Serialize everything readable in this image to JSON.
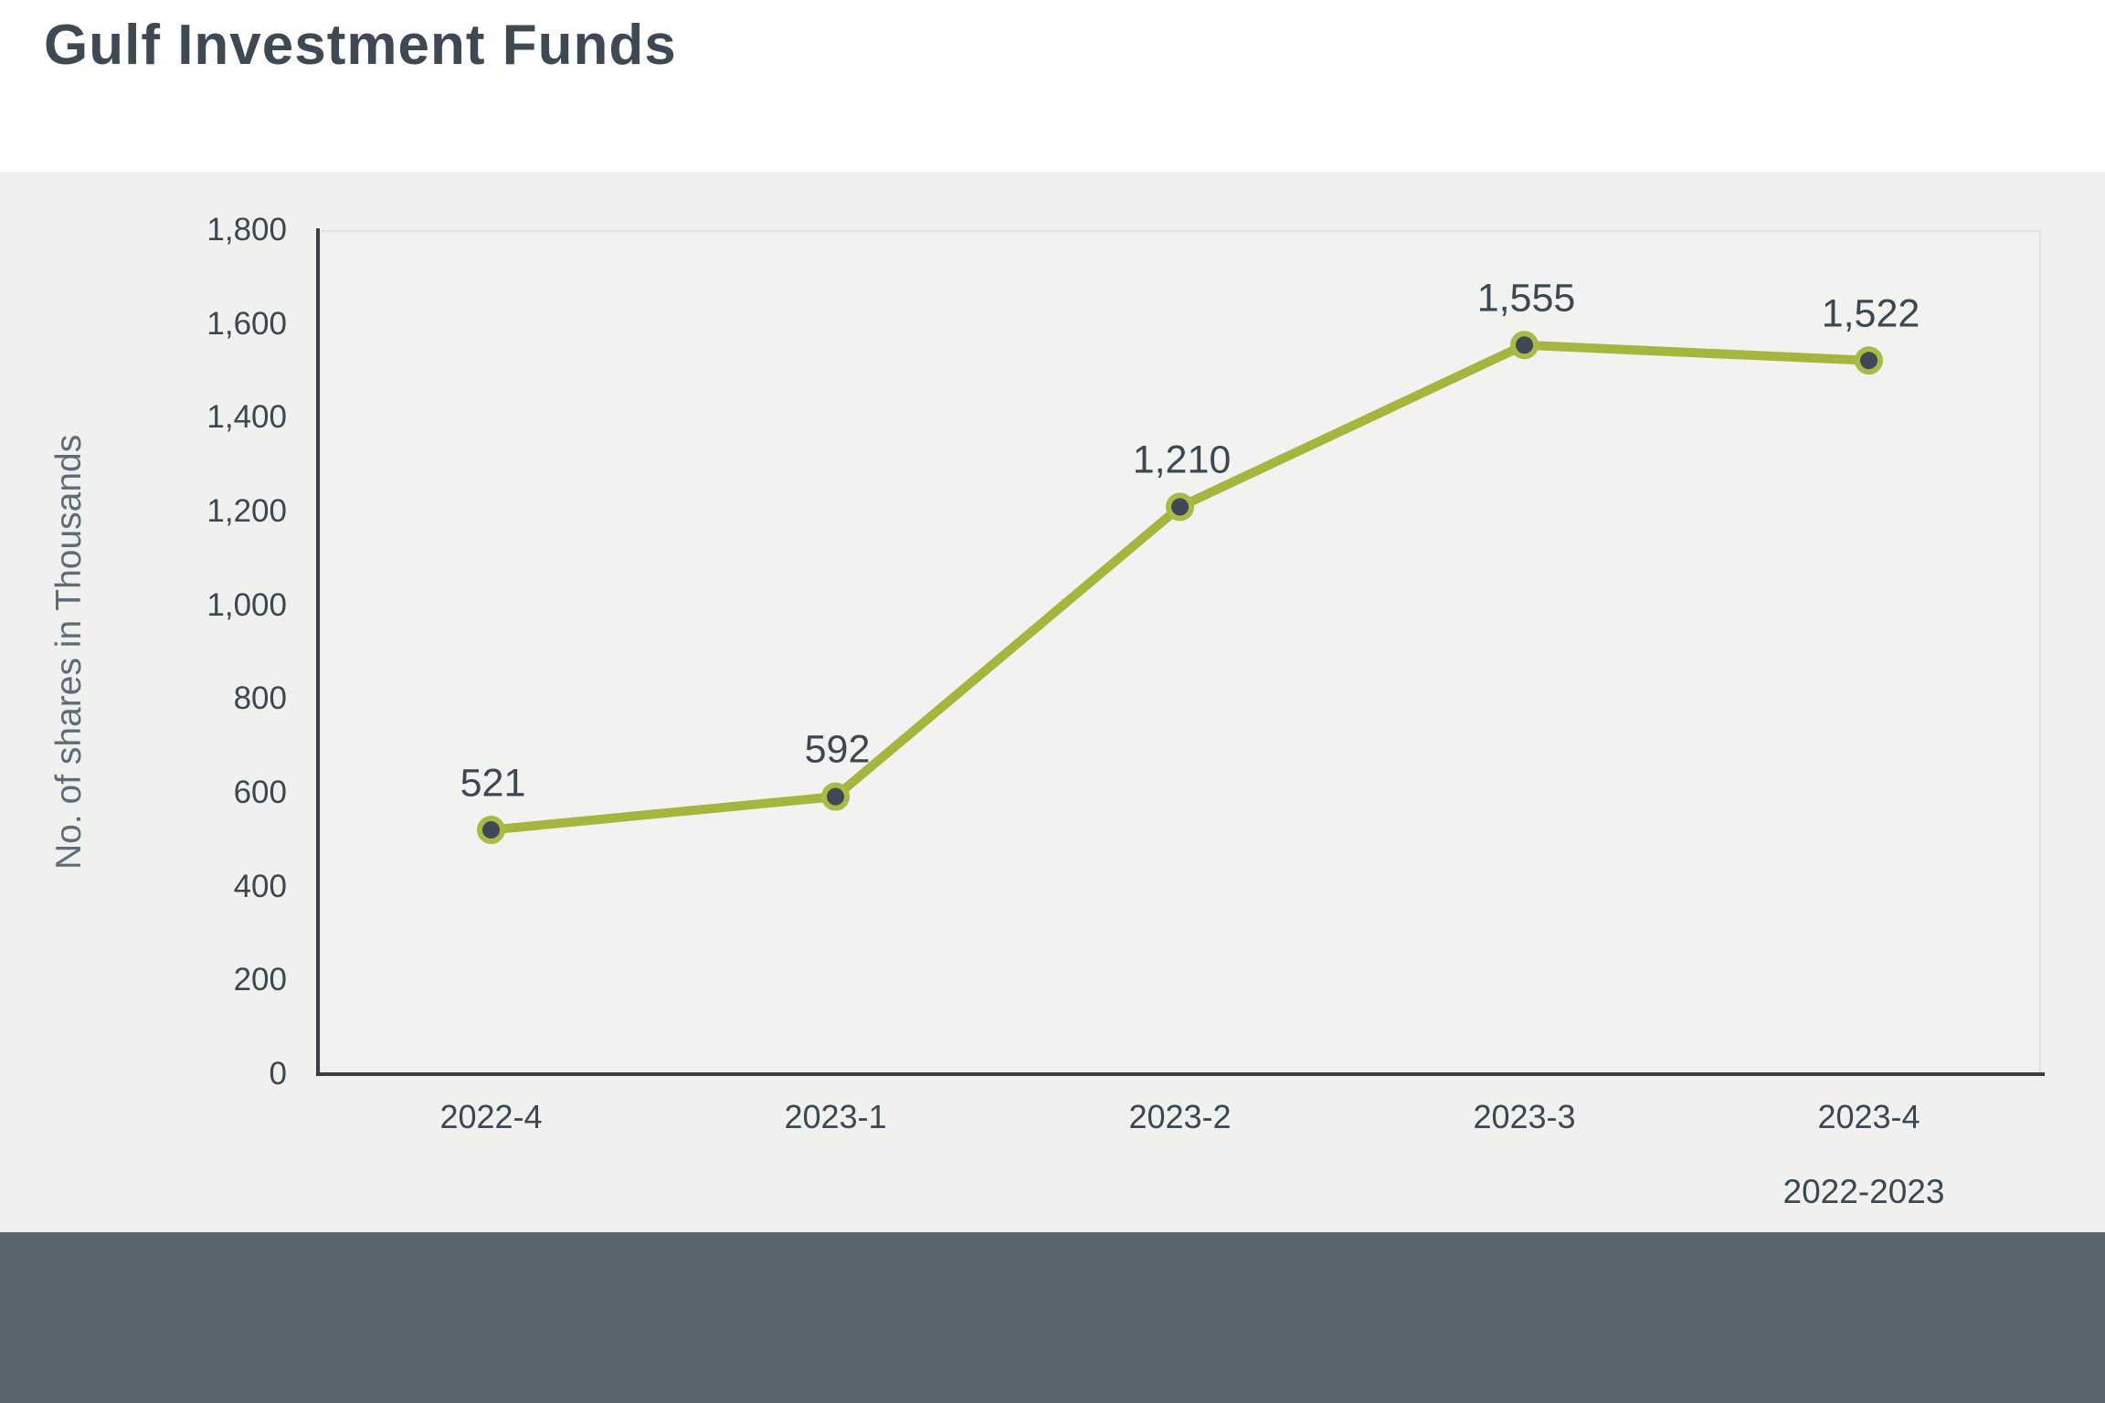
{
  "title": "Gulf Investment Funds",
  "chart_data": {
    "type": "line",
    "title": "Gulf Investment Funds",
    "categories": [
      "2022-4",
      "2023-1",
      "2023-2",
      "2023-3",
      "2023-4"
    ],
    "series": [
      {
        "name": "No. of shares",
        "values": [
          521,
          592,
          1210,
          1555,
          1522
        ],
        "point_labels": [
          "521",
          "592",
          "1,210",
          "1,555",
          "1,522"
        ]
      }
    ],
    "xlabel": "2022-2023",
    "ylabel": "No. of shares in Thousands",
    "ylim": [
      0,
      1800
    ],
    "yticks": {
      "values": [
        0,
        200,
        400,
        600,
        800,
        1000,
        1200,
        1400,
        1600,
        1800
      ],
      "labels": [
        "0",
        "200",
        "400",
        "600",
        "800",
        "1,000",
        "1,200",
        "1,400",
        "1,600",
        "1,800"
      ]
    },
    "grid": false,
    "legend": false,
    "marker": "circle"
  },
  "colors": {
    "line": "#a5b53e",
    "marker_fill": "#3d4955",
    "marker_ring": "#a9bb46",
    "title_text": "#3e4953",
    "tick_text": "#3b4751",
    "axis_title_text": "#5e6c79",
    "axis_line": "#3a3f45",
    "panel_bg": "#f0f0ef",
    "plot_bg": "#f2f2f1",
    "plot_border": "#e2e2e0",
    "footer_bg": "#5a656e",
    "page_bg": "#ffffff"
  }
}
